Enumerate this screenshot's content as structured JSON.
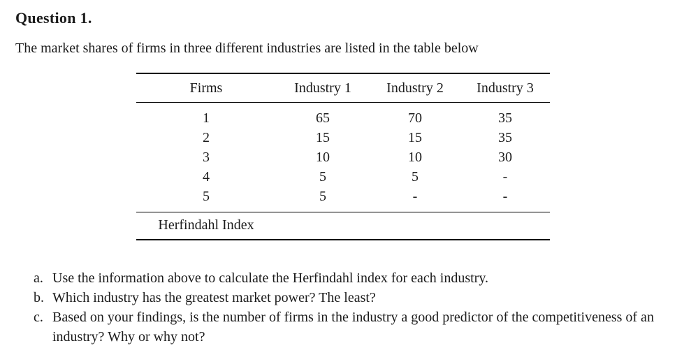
{
  "page": {
    "heading": "Question 1.",
    "intro": "The market shares of firms in three different industries are listed in the table below"
  },
  "table": {
    "columns": [
      "Firms",
      "Industry 1",
      "Industry 2",
      "Industry 3"
    ],
    "rows": [
      [
        "1",
        "65",
        "70",
        "35"
      ],
      [
        "2",
        "15",
        "15",
        "35"
      ],
      [
        "3",
        "10",
        "10",
        "30"
      ],
      [
        "4",
        "5",
        "5",
        "-"
      ],
      [
        "5",
        "5",
        "-",
        "-"
      ]
    ],
    "footer_label": "Herfindahl Index"
  },
  "questions": [
    {
      "label": "a.",
      "text": "Use the information above to calculate the Herfindahl index for each industry."
    },
    {
      "label": "b.",
      "text": "Which industry has the greatest market power? The least?"
    },
    {
      "label": "c.",
      "text": "Based on your findings, is the number of firms in the industry a good predictor of the competitiveness of an industry? Why or why not?"
    }
  ],
  "colors": {
    "background": "#ffffff",
    "text": "#1c1c1c",
    "rule": "#000000"
  }
}
